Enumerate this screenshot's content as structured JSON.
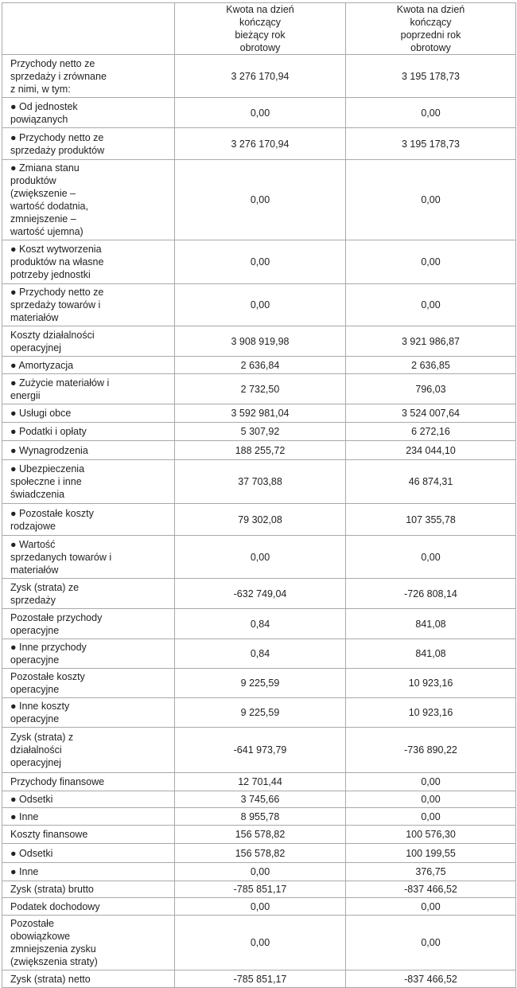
{
  "header": {
    "col_current": "Kwota na dzień kończący bieżący rok obrotowy",
    "col_previous": "Kwota na dzień kończący poprzedni rok obrotowy"
  },
  "rows": [
    {
      "label": "Przychody netto ze sprzedaży i zrównane z nimi, w tym:",
      "current": "3 276 170,94",
      "previous": "3 195 178,73"
    },
    {
      "label": "● Od jednostek powiązanych",
      "current": "0,00",
      "previous": "0,00"
    },
    {
      "label": "● Przychody netto ze sprzedaży produktów",
      "current": "3 276 170,94",
      "previous": "3 195 178,73"
    },
    {
      "label": "● Zmiana stanu produktów (zwiększenie – wartość dodatnia, zmniejszenie – wartość ujemna)",
      "current": "0,00",
      "previous": "0,00"
    },
    {
      "label": "● Koszt wytworzenia produktów na własne potrzeby jednostki",
      "current": "0,00",
      "previous": "0,00"
    },
    {
      "label": "● Przychody netto ze sprzedaży towarów i materiałów",
      "current": "0,00",
      "previous": "0,00"
    },
    {
      "label": "Koszty działalności operacyjnej",
      "current": "3 908 919,98",
      "previous": "3 921 986,87"
    },
    {
      "label": "● Amortyzacja",
      "current": "2 636,84",
      "previous": "2 636,85"
    },
    {
      "label": "● Zużycie materiałów i energii",
      "current": "2 732,50",
      "previous": "796,03"
    },
    {
      "label": "● Usługi obce",
      "current": "3 592 981,04",
      "previous": "3 524 007,64"
    },
    {
      "label": "● Podatki i opłaty",
      "current": "5 307,92",
      "previous": "6 272,16"
    },
    {
      "label": "● Wynagrodzenia",
      "current": "188 255,72",
      "previous": "234 044,10"
    },
    {
      "label": "● Ubezpieczenia społeczne i inne świadczenia",
      "current": "37 703,88",
      "previous": "46 874,31"
    },
    {
      "label": "● Pozostałe koszty rodzajowe",
      "current": "79 302,08",
      "previous": "107 355,78"
    },
    {
      "label": "● Wartość sprzedanych towarów i materiałów",
      "current": "0,00",
      "previous": "0,00"
    },
    {
      "label": "Zysk (strata) ze sprzedaży",
      "current": "-632 749,04",
      "previous": "-726 808,14"
    },
    {
      "label": "Pozostałe przychody operacyjne",
      "current": "0,84",
      "previous": "841,08"
    },
    {
      "label": "● Inne przychody operacyjne",
      "current": "0,84",
      "previous": "841,08"
    },
    {
      "label": "Pozostałe koszty operacyjne",
      "current": "9 225,59",
      "previous": "10 923,16"
    },
    {
      "label": "● Inne koszty operacyjne",
      "current": "9 225,59",
      "previous": "10 923,16"
    },
    {
      "label": "Zysk (strata) z działalności operacyjnej",
      "current": "-641 973,79",
      "previous": "-736 890,22"
    },
    {
      "label": "Przychody finansowe",
      "current": "12 701,44",
      "previous": "0,00"
    },
    {
      "label": "● Odsetki",
      "current": "3 745,66",
      "previous": "0,00"
    },
    {
      "label": "● Inne",
      "current": "8 955,78",
      "previous": "0,00"
    },
    {
      "label": "Koszty finansowe",
      "current": "156 578,82",
      "previous": "100 576,30"
    },
    {
      "label": "● Odsetki",
      "current": "156 578,82",
      "previous": "100 199,55"
    },
    {
      "label": "● Inne",
      "current": "0,00",
      "previous": "376,75"
    },
    {
      "label": "Zysk (strata) brutto",
      "current": "-785 851,17",
      "previous": "-837 466,52"
    },
    {
      "label": "Podatek dochodowy",
      "current": "0,00",
      "previous": "0,00"
    },
    {
      "label": "Pozostałe obowiązkowe zmniejszenia zysku (zwiększenia straty)",
      "current": "0,00",
      "previous": "0,00"
    },
    {
      "label": "Zysk (strata) netto",
      "current": "-785 851,17",
      "previous": "-837 466,52"
    }
  ]
}
